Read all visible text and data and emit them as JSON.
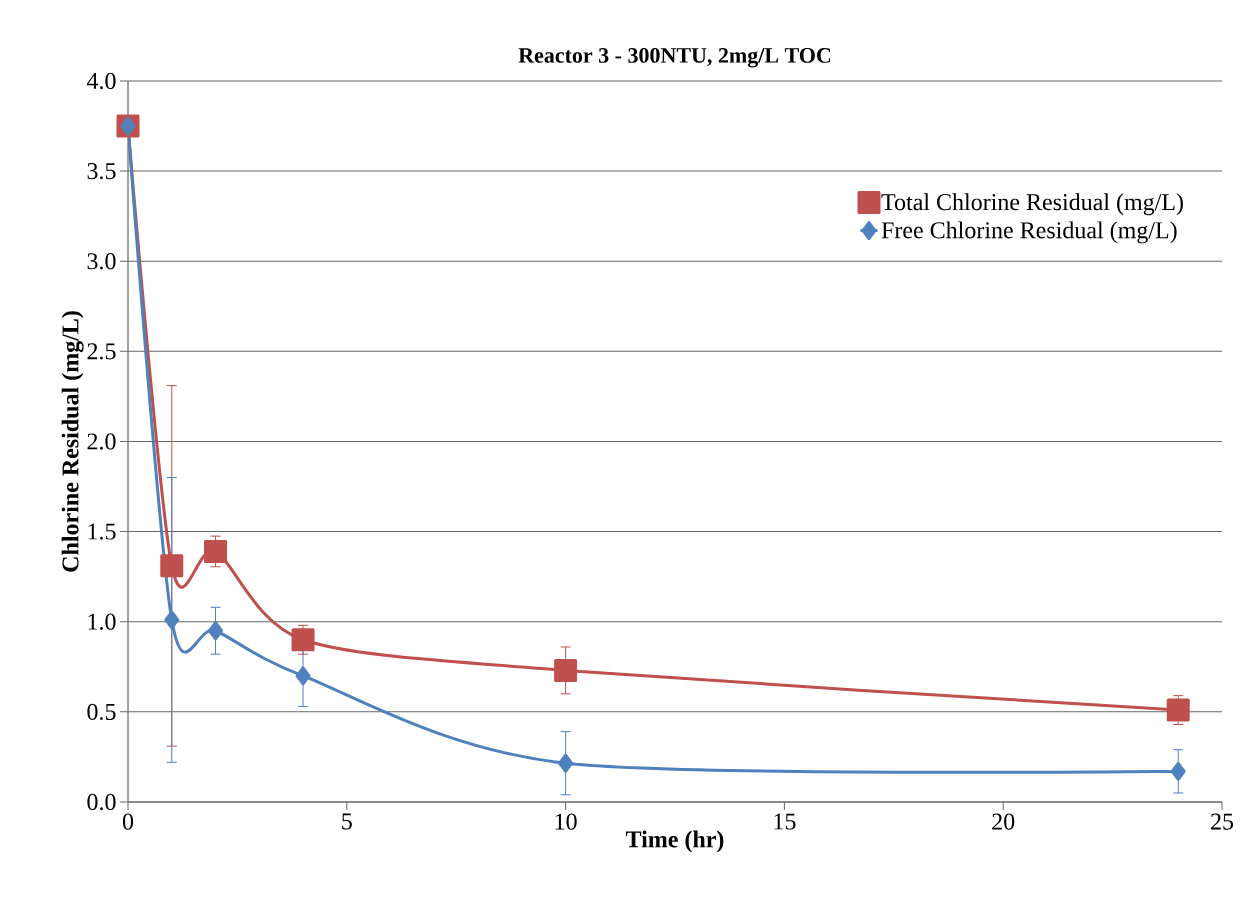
{
  "chart_data": {
    "type": "line",
    "title": "Reactor 3 - 300NTU, 2mg/L TOC",
    "xlabel": "Time (hr)",
    "ylabel": "Chlorine Residual (mg/L)",
    "x": [
      0,
      1,
      2,
      4,
      10,
      24
    ],
    "series": [
      {
        "name": "Total Chlorine Residual (mg/L)",
        "color": "#c0504d",
        "marker": "square",
        "values": [
          3.75,
          1.31,
          1.39,
          0.9,
          0.73,
          0.51
        ],
        "errors": [
          null,
          1.0,
          0.085,
          0.08,
          0.13,
          0.08
        ]
      },
      {
        "name": "Free Chlorine Residual (mg/L)",
        "color": "#4f81bd",
        "marker": "diamond",
        "values": [
          3.75,
          1.01,
          0.95,
          0.7,
          0.215,
          0.17
        ],
        "errors": [
          null,
          0.79,
          0.13,
          0.17,
          0.175,
          0.12
        ]
      }
    ],
    "xlim": [
      0,
      25
    ],
    "xticks": [
      0,
      5,
      10,
      15,
      20,
      25
    ],
    "ylim": [
      0,
      4
    ],
    "yticks": [
      {
        "value": 0,
        "label": "0.0"
      },
      {
        "value": 0.5,
        "label": "0.5"
      },
      {
        "value": 1,
        "label": "1.0"
      },
      {
        "value": 1.5,
        "label": "1.5"
      },
      {
        "value": 2,
        "label": "2.0"
      },
      {
        "value": 2.5,
        "label": "2.5"
      },
      {
        "value": 3,
        "label": "3.0"
      },
      {
        "value": 3.5,
        "label": "3.5"
      },
      {
        "value": 4,
        "label": "4.0"
      }
    ],
    "grid": "y",
    "legend": "top right",
    "line_style": "solid"
  }
}
